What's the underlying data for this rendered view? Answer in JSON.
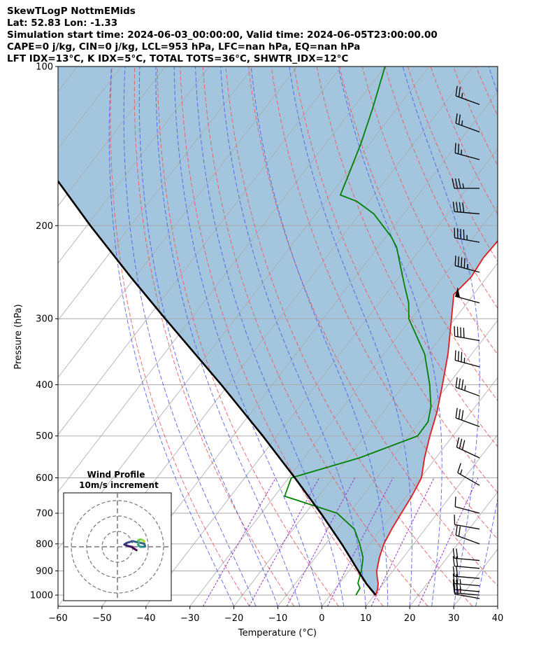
{
  "header": {
    "title": "SkewTLogP NottmEMids",
    "location": "Lat: 52.83   Lon: -1.33",
    "times": "Simulation start time: 2024-06-03_00:00:00, Valid time: 2024-06-05T23:00:00.00",
    "params": "CAPE=0 j/kg, CIN=0 j/kg, LCL=953 hPa, LFC=nan hPa, EQ=nan hPa",
    "indices": "LFT IDX=13°C, K IDX=5°C, TOTAL TOTS=36°C, SHWTR_IDX=12°C"
  },
  "chart_data": {
    "type": "line",
    "subtype": "skew-T log-P",
    "xlabel": "Temperature (°C)",
    "ylabel": "Pressure (hPa)",
    "xlim": [
      -60,
      40
    ],
    "ylim": [
      1050,
      100
    ],
    "x_ticks": [
      -60,
      -50,
      -40,
      -30,
      -20,
      -10,
      0,
      10,
      20,
      30,
      40
    ],
    "y_ticks": [
      1000,
      900,
      800,
      700,
      600,
      500,
      400,
      300,
      200,
      100
    ],
    "colors": {
      "temperature": "#e31a1c",
      "dewpoint": "#008000",
      "parcel": "#000000",
      "shade": "#a3c6de",
      "dry_adiabat": "#ee5555",
      "moist_adiabat": "#4a5ae8",
      "mixing_ratio": "#9933cc",
      "isotherm": "#aaaaaa"
    },
    "series": [
      {
        "name": "Temperature",
        "points": [
          [
            1000,
            10.3
          ],
          [
            975,
            9.7
          ],
          [
            950,
            8.8
          ],
          [
            925,
            7.5
          ],
          [
            900,
            6.3
          ],
          [
            850,
            4.6
          ],
          [
            800,
            3.2
          ],
          [
            750,
            2.4
          ],
          [
            700,
            1.8
          ],
          [
            650,
            1.2
          ],
          [
            600,
            0.2
          ],
          [
            550,
            -2.6
          ],
          [
            500,
            -5.2
          ],
          [
            450,
            -7.8
          ],
          [
            400,
            -11.3
          ],
          [
            350,
            -15.4
          ],
          [
            300,
            -20.8
          ],
          [
            270,
            -24.5
          ],
          [
            250,
            -23.6
          ],
          [
            230,
            -24.2
          ],
          [
            210,
            -23.8
          ],
          [
            200,
            -22.6
          ],
          [
            180,
            -18.0
          ],
          [
            170,
            -14.3
          ],
          [
            160,
            -10.7
          ],
          [
            150,
            -9.5
          ],
          [
            140,
            -9.4
          ],
          [
            130,
            -8.9
          ],
          [
            120,
            -9.0
          ],
          [
            110,
            -9.5
          ],
          [
            100,
            -9.8
          ]
        ]
      },
      {
        "name": "Dewpoint",
        "points": [
          [
            1000,
            5.8
          ],
          [
            970,
            5.5
          ],
          [
            950,
            4.2
          ],
          [
            900,
            2.8
          ],
          [
            850,
            0.9
          ],
          [
            800,
            -2.3
          ],
          [
            750,
            -6.1
          ],
          [
            700,
            -12.8
          ],
          [
            650,
            -27.7
          ],
          [
            600,
            -29.4
          ],
          [
            550,
            -17.4
          ],
          [
            500,
            -8.0
          ],
          [
            470,
            -8.1
          ],
          [
            440,
            -10.1
          ],
          [
            400,
            -14.2
          ],
          [
            350,
            -20.7
          ],
          [
            300,
            -30.5
          ],
          [
            280,
            -33.3
          ],
          [
            260,
            -37.2
          ],
          [
            240,
            -41.3
          ],
          [
            220,
            -45.7
          ],
          [
            210,
            -48.8
          ],
          [
            190,
            -56.8
          ],
          [
            180,
            -62.8
          ],
          [
            175,
            -67.7
          ],
          [
            160,
            -69.4
          ],
          [
            140,
            -72.0
          ],
          [
            120,
            -75.5
          ],
          [
            100,
            -80.0
          ]
        ]
      },
      {
        "name": "Parcel",
        "points": [
          [
            1000,
            10.3
          ],
          [
            953,
            6.3
          ],
          [
            900,
            2.1
          ],
          [
            850,
            -2.0
          ],
          [
            800,
            -6.4
          ],
          [
            700,
            -16.5
          ],
          [
            600,
            -28.6
          ],
          [
            500,
            -43.2
          ],
          [
            400,
            -61.6
          ],
          [
            300,
            -85.9
          ],
          [
            250,
            -101.1
          ],
          [
            200,
            -119.2
          ],
          [
            150,
            -141.7
          ],
          [
            100,
            -171.3
          ]
        ]
      }
    ],
    "wind_barbs": [
      {
        "p": 1015,
        "speed_kt": 15,
        "dir": 280
      },
      {
        "p": 1000,
        "speed_kt": 25,
        "dir": 275
      },
      {
        "p": 985,
        "speed_kt": 25,
        "dir": 275
      },
      {
        "p": 960,
        "speed_kt": 25,
        "dir": 275
      },
      {
        "p": 930,
        "speed_kt": 20,
        "dir": 275
      },
      {
        "p": 890,
        "speed_kt": 20,
        "dir": 275
      },
      {
        "p": 860,
        "speed_kt": 20,
        "dir": 275
      },
      {
        "p": 800,
        "speed_kt": 20,
        "dir": 290
      },
      {
        "p": 750,
        "speed_kt": 10,
        "dir": 280
      },
      {
        "p": 700,
        "speed_kt": 10,
        "dir": 285
      },
      {
        "p": 620,
        "speed_kt": 15,
        "dir": 300
      },
      {
        "p": 550,
        "speed_kt": 30,
        "dir": 295
      },
      {
        "p": 480,
        "speed_kt": 30,
        "dir": 290
      },
      {
        "p": 420,
        "speed_kt": 35,
        "dir": 290
      },
      {
        "p": 370,
        "speed_kt": 35,
        "dir": 285
      },
      {
        "p": 330,
        "speed_kt": 40,
        "dir": 280
      },
      {
        "p": 280,
        "speed_kt": 50,
        "dir": 285
      },
      {
        "p": 245,
        "speed_kt": 45,
        "dir": 285
      },
      {
        "p": 215,
        "speed_kt": 45,
        "dir": 280
      },
      {
        "p": 190,
        "speed_kt": 40,
        "dir": 275
      },
      {
        "p": 170,
        "speed_kt": 35,
        "dir": 270
      },
      {
        "p": 150,
        "speed_kt": 25,
        "dir": 285
      },
      {
        "p": 133,
        "speed_kt": 25,
        "dir": 290
      },
      {
        "p": 118,
        "speed_kt": 25,
        "dir": 290
      }
    ],
    "hodograph": {
      "title": "Wind Profile",
      "subtitle": "10m/s increment",
      "ring_step": 10,
      "ring_count": 3,
      "range": 35,
      "points": [
        [
          12.4,
          -2.2
        ],
        [
          9.0,
          0.0
        ],
        [
          7.0,
          0.5
        ],
        [
          4.5,
          1.5
        ],
        [
          6.0,
          2.5
        ],
        [
          7.5,
          3.0
        ],
        [
          10.0,
          3.6
        ],
        [
          17.5,
          2.0
        ],
        [
          18.0,
          0.2
        ],
        [
          17.0,
          0.0
        ],
        [
          15.0,
          0.0
        ],
        [
          14.0,
          0.5
        ],
        [
          13.5,
          1.5
        ],
        [
          14.0,
          2.5
        ],
        [
          14.0,
          3.5
        ],
        [
          13.5,
          4.0
        ],
        [
          14.0,
          4.5
        ],
        [
          15.0,
          4.8
        ],
        [
          16.0,
          4.5
        ],
        [
          17.0,
          4.0
        ],
        [
          17.5,
          3.5
        ],
        [
          17.0,
          3.3
        ]
      ]
    }
  }
}
